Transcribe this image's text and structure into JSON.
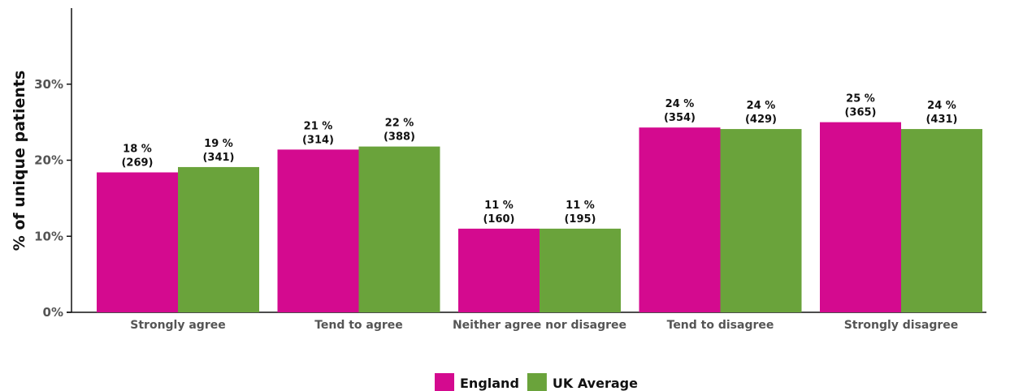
{
  "chart_data": {
    "type": "bar",
    "categories": [
      "Strongly agree",
      "Tend to agree",
      "Neither agree nor disagree",
      "Tend to disagree",
      "Strongly disagree"
    ],
    "series": [
      {
        "name": "England",
        "color": "#d40a8f",
        "values": [
          18.4,
          21.4,
          11.0,
          24.3,
          25.0
        ],
        "labels": [
          "18 %",
          "21 %",
          "11 %",
          "24 %",
          "25 %"
        ],
        "counts": [
          "(269)",
          "(314)",
          "(160)",
          "(354)",
          "(365)"
        ]
      },
      {
        "name": "UK Average",
        "color": "#6aa33b",
        "values": [
          19.1,
          21.8,
          11.0,
          24.1,
          24.1
        ],
        "labels": [
          "19 %",
          "22 %",
          "11 %",
          "24 %",
          "24 %"
        ],
        "counts": [
          "(341)",
          "(388)",
          "(195)",
          "(429)",
          "(431)"
        ]
      }
    ],
    "ylabel": "% of unique patients",
    "xlabel": "",
    "ylim": [
      0,
      40
    ],
    "yticks": [
      0,
      10,
      20,
      30
    ],
    "ytick_labels": [
      "0%",
      "10%",
      "20%",
      "30%"
    ],
    "grid": false,
    "legend": "bottom-center"
  }
}
